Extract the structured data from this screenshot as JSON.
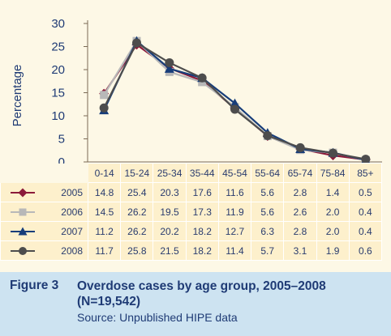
{
  "figure": {
    "label": "Figure 3",
    "title": "Overdose cases by age group, 2005–2008 (N=19,542)",
    "source": "Source: Unpublished HIPE data"
  },
  "colors": {
    "background": "#fdf8e6",
    "table_fill": "#fdf0cc",
    "caption_fill": "#cde3f1",
    "text": "#1f3b75",
    "axis": "#7a6a55"
  },
  "chart_data": {
    "type": "line",
    "ylabel": "Percentage",
    "xlabel": "",
    "ylim": [
      0,
      30
    ],
    "yticks": [
      0,
      5,
      10,
      15,
      20,
      25,
      30
    ],
    "grid": false,
    "categories": [
      "0-14",
      "15-24",
      "25-34",
      "35-44",
      "45-54",
      "55-64",
      "65-74",
      "75-84",
      "85+"
    ],
    "series": [
      {
        "name": "2005",
        "marker": "diamond",
        "color": "#8b1a3a",
        "values": [
          14.8,
          25.4,
          20.3,
          17.6,
          11.6,
          5.6,
          2.8,
          1.4,
          0.5
        ]
      },
      {
        "name": "2006",
        "marker": "square",
        "color": "#b8b8b8",
        "values": [
          14.5,
          26.2,
          19.5,
          17.3,
          11.9,
          5.6,
          2.6,
          2.0,
          0.4
        ]
      },
      {
        "name": "2007",
        "marker": "triangle",
        "color": "#173d7a",
        "values": [
          11.2,
          26.2,
          20.2,
          18.2,
          12.7,
          6.3,
          2.8,
          2.0,
          0.4
        ]
      },
      {
        "name": "2008",
        "marker": "circle",
        "color": "#4d4d4d",
        "values": [
          11.7,
          25.8,
          21.5,
          18.2,
          11.4,
          5.7,
          3.1,
          1.9,
          0.6
        ]
      }
    ]
  }
}
